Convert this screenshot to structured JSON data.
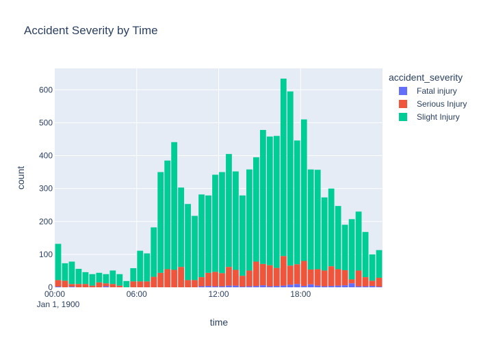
{
  "chart_data": {
    "type": "bar",
    "stacked": true,
    "title": "Accident Severity by Time",
    "xlabel": "time",
    "ylabel": "count",
    "x_date_label": "Jan 1, 1900",
    "x_tick_labels": [
      "00:00",
      "06:00",
      "12:00",
      "18:00"
    ],
    "y_ticks": [
      0,
      100,
      200,
      300,
      400,
      500,
      600
    ],
    "ylim": [
      0,
      665
    ],
    "x_range_hours": [
      0,
      24
    ],
    "bin_hours": 0.5,
    "legend_title": "accident_severity",
    "legend_position": "right",
    "grid": true,
    "plot_bg": "#e5ecf6",
    "bin_starts": [
      "00:00",
      "00:30",
      "01:00",
      "01:30",
      "02:00",
      "02:30",
      "03:00",
      "03:30",
      "04:00",
      "04:30",
      "05:00",
      "05:30",
      "06:00",
      "06:30",
      "07:00",
      "07:30",
      "08:00",
      "08:30",
      "09:00",
      "09:30",
      "10:00",
      "10:30",
      "11:00",
      "11:30",
      "12:00",
      "12:30",
      "13:00",
      "13:30",
      "14:00",
      "14:30",
      "15:00",
      "15:30",
      "16:00",
      "16:30",
      "17:00",
      "17:30",
      "18:00",
      "18:30",
      "19:00",
      "19:30",
      "20:00",
      "20:30",
      "21:00",
      "21:30",
      "22:00",
      "22:30",
      "23:00",
      "23:30"
    ],
    "series": [
      {
        "name": "Fatal injury",
        "color": "#636efa",
        "values": [
          2,
          0,
          2,
          0,
          0,
          0,
          0,
          3,
          0,
          0,
          0,
          0,
          0,
          0,
          0,
          0,
          0,
          0,
          0,
          0,
          0,
          3,
          4,
          3,
          3,
          5,
          5,
          2,
          3,
          4,
          6,
          3,
          4,
          5,
          8,
          10,
          4,
          9,
          5,
          3,
          4,
          5,
          6,
          12,
          3,
          3,
          4,
          2
        ]
      },
      {
        "name": "Serious Injury",
        "color": "#ef553b",
        "values": [
          20,
          20,
          8,
          10,
          10,
          5,
          15,
          9,
          10,
          5,
          0,
          18,
          18,
          18,
          32,
          44,
          55,
          53,
          62,
          22,
          22,
          28,
          40,
          44,
          40,
          57,
          48,
          33,
          48,
          74,
          65,
          64,
          55,
          90,
          58,
          60,
          76,
          45,
          50,
          48,
          60,
          50,
          46,
          12,
          48,
          28,
          16,
          27
        ]
      },
      {
        "name": "Slight Injury",
        "color": "#00cc96",
        "values": [
          110,
          53,
          68,
          46,
          36,
          35,
          29,
          28,
          41,
          35,
          19,
          40,
          93,
          85,
          150,
          306,
          330,
          388,
          241,
          231,
          195,
          251,
          235,
          295,
          307,
          343,
          299,
          244,
          307,
          317,
          407,
          391,
          401,
          539,
          529,
          376,
          430,
          304,
          302,
          222,
          236,
          192,
          138,
          183,
          179,
          137,
          80,
          84
        ]
      }
    ]
  }
}
